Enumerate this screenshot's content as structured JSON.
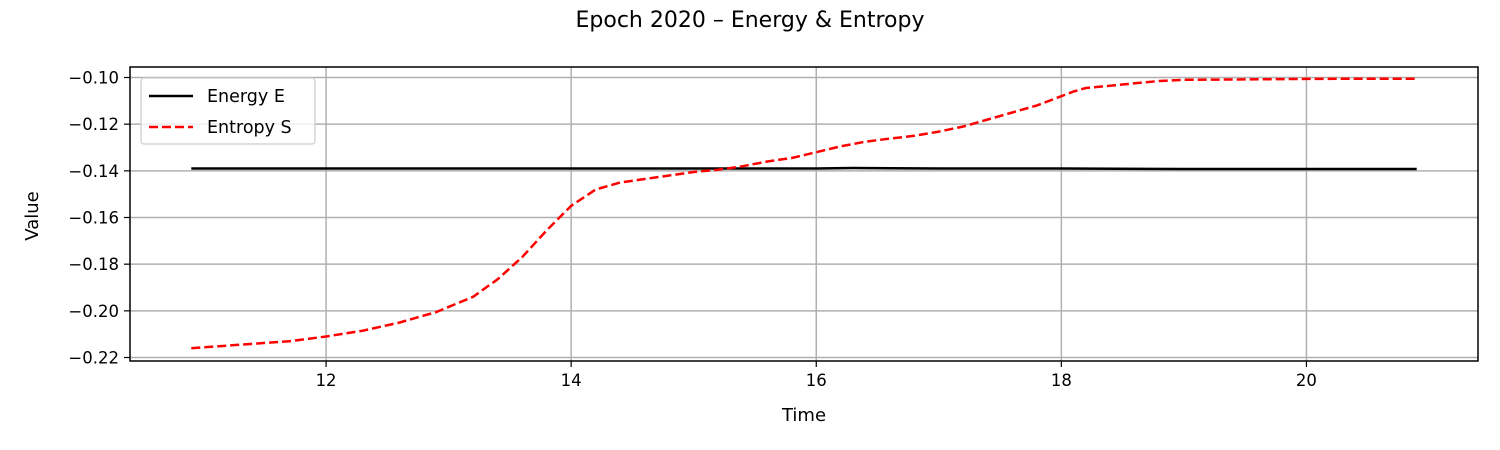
{
  "chart_data": {
    "type": "line",
    "title": "Epoch 2020 – Energy & Entropy",
    "xlabel": "Time",
    "ylabel": "Value",
    "xlim": [
      10.4,
      21.4
    ],
    "ylim": [
      -0.2215,
      -0.0955
    ],
    "x_ticks": [
      {
        "value": 12,
        "label": "12"
      },
      {
        "value": 14,
        "label": "14"
      },
      {
        "value": 16,
        "label": "16"
      },
      {
        "value": 18,
        "label": "18"
      },
      {
        "value": 20,
        "label": "20"
      }
    ],
    "y_ticks": [
      {
        "value": -0.22,
        "label": "−0.22"
      },
      {
        "value": -0.2,
        "label": "−0.20"
      },
      {
        "value": -0.18,
        "label": "−0.18"
      },
      {
        "value": -0.16,
        "label": "−0.16"
      },
      {
        "value": -0.14,
        "label": "−0.14"
      },
      {
        "value": -0.12,
        "label": "−0.12"
      },
      {
        "value": -0.1,
        "label": "−0.10"
      }
    ],
    "grid": true,
    "legend_position": "top-left",
    "series": [
      {
        "name": "Energy E",
        "color": "#000000",
        "style": "solid",
        "x": [
          10.9,
          12.0,
          13.0,
          14.0,
          15.0,
          16.0,
          16.3,
          17.0,
          18.0,
          19.0,
          20.0,
          20.9
        ],
        "y": [
          -0.139,
          -0.139,
          -0.139,
          -0.139,
          -0.139,
          -0.139,
          -0.1388,
          -0.139,
          -0.139,
          -0.1392,
          -0.1392,
          -0.1392
        ]
      },
      {
        "name": "Entropy S",
        "color": "#ff0000",
        "style": "dashed",
        "x": [
          10.9,
          11.3,
          11.7,
          12.0,
          12.3,
          12.6,
          12.9,
          13.2,
          13.4,
          13.6,
          13.8,
          14.0,
          14.2,
          14.4,
          14.6,
          14.8,
          15.0,
          15.2,
          15.4,
          15.6,
          15.8,
          16.0,
          16.2,
          16.4,
          16.6,
          16.8,
          17.0,
          17.2,
          17.4,
          17.6,
          17.8,
          18.0,
          18.1,
          18.2,
          18.4,
          18.6,
          18.8,
          19.0,
          19.5,
          20.0,
          20.5,
          20.9
        ],
        "y": [
          -0.216,
          -0.2145,
          -0.213,
          -0.211,
          -0.2085,
          -0.205,
          -0.2005,
          -0.194,
          -0.1865,
          -0.177,
          -0.1655,
          -0.155,
          -0.148,
          -0.145,
          -0.1435,
          -0.142,
          -0.1405,
          -0.1395,
          -0.138,
          -0.136,
          -0.1345,
          -0.132,
          -0.1295,
          -0.1275,
          -0.1262,
          -0.125,
          -0.1232,
          -0.121,
          -0.118,
          -0.115,
          -0.112,
          -0.108,
          -0.106,
          -0.1045,
          -0.1035,
          -0.1025,
          -0.1015,
          -0.101,
          -0.1008,
          -0.1006,
          -0.1005,
          -0.1005
        ]
      }
    ]
  }
}
